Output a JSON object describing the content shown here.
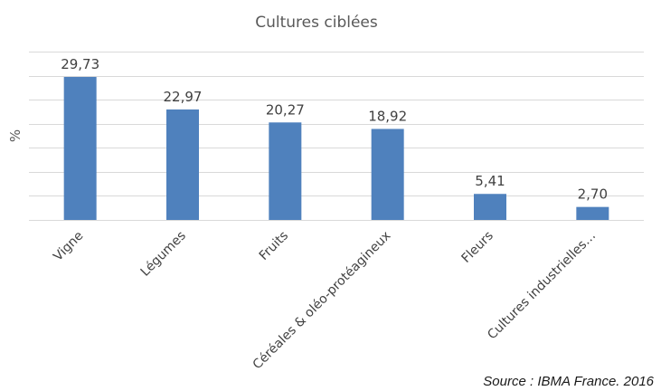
{
  "chart_data": {
    "type": "bar",
    "title": "Cultures ciblées",
    "xlabel": "",
    "ylabel": "%",
    "categories": [
      "Vigne",
      "Légumes",
      "Fruits",
      "Céréales & oléo-protéagineux",
      "Fleurs",
      "Cultures industrielles…"
    ],
    "values": [
      29.73,
      22.97,
      20.27,
      18.92,
      5.41,
      2.7
    ],
    "data_labels": [
      "29,73",
      "22,97",
      "20,27",
      "18,92",
      "5,41",
      "2,70"
    ],
    "ylim": [
      0,
      35
    ],
    "grid": true,
    "legend": "none",
    "bar_color": "#4f81bd",
    "grid_color": "#d9d9d9"
  },
  "source": "Source : IBMA France. 2016"
}
